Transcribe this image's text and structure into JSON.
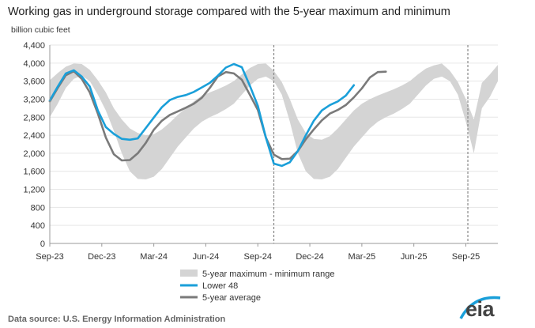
{
  "title": "Working gas in underground  storage compared with the 5-year maximum  and minimum",
  "source": "Data source:  U.S. Energy  Information  Administration",
  "logo_text": "eia",
  "chart_data": {
    "type": "area",
    "ylabel": "billion cubic feet",
    "ylim": [
      0,
      4400
    ],
    "yticks": [
      0,
      400,
      800,
      1200,
      1600,
      2000,
      2400,
      2800,
      3200,
      3600,
      4000,
      4400
    ],
    "xticks": [
      "Sep-23",
      "Dec-23",
      "Mar-24",
      "Jun-24",
      "Sep-24",
      "Dec-24",
      "Mar-25",
      "Jun-25",
      "Sep-25"
    ],
    "grid": true,
    "legend_position": "bottom",
    "week_offsets": [
      0,
      2,
      4,
      6,
      8,
      10,
      12,
      14,
      16,
      18,
      20,
      22,
      24,
      26,
      28,
      30,
      32,
      34,
      36,
      38,
      40,
      42,
      44,
      46,
      48,
      50,
      52,
      54,
      56,
      58,
      60,
      62,
      64,
      66,
      68,
      70,
      72,
      74,
      76,
      78,
      80,
      82,
      84,
      86,
      88,
      90,
      92,
      94,
      96,
      98,
      100,
      102,
      104,
      106,
      108,
      110,
      112
    ],
    "vertical_markers": [
      56,
      104.5
    ],
    "series": [
      {
        "name": "5-year maximum - minimum range",
        "kind": "band",
        "color": "#d4d4d4",
        "max": [
          3620,
          3780,
          3920,
          3990,
          3980,
          3850,
          3620,
          3350,
          3000,
          2750,
          2550,
          2450,
          2400,
          2420,
          2530,
          2680,
          2850,
          3000,
          3150,
          3280,
          3350,
          3420,
          3500,
          3600,
          3750,
          3890,
          3980,
          3990,
          3830,
          3580,
          3200,
          2750,
          2450,
          2320,
          2300,
          2380,
          2550,
          2750,
          2950,
          3100,
          3200,
          3280,
          3350,
          3420,
          3500,
          3600,
          3750,
          3880,
          3950,
          3990,
          3830,
          3580,
          3200,
          2750,
          3560,
          3750,
          3960
        ],
        "min": [
          2800,
          3100,
          3450,
          3650,
          3720,
          3600,
          3300,
          2950,
          2500,
          2000,
          1600,
          1430,
          1420,
          1480,
          1650,
          1900,
          2150,
          2350,
          2550,
          2700,
          2800,
          2880,
          2980,
          3100,
          3300,
          3500,
          3650,
          3700,
          3600,
          3300,
          2700,
          2000,
          1600,
          1430,
          1420,
          1480,
          1650,
          1900,
          2150,
          2350,
          2550,
          2700,
          2800,
          2880,
          2980,
          3100,
          3300,
          3500,
          3650,
          3700,
          3600,
          3300,
          2700,
          2000,
          3000,
          3250,
          3600
        ]
      },
      {
        "name": "Lower 48",
        "kind": "line",
        "color": "#1a9fd9",
        "values": [
          3170,
          3480,
          3770,
          3840,
          3700,
          3480,
          2950,
          2580,
          2430,
          2320,
          2300,
          2330,
          2560,
          2790,
          3020,
          3180,
          3250,
          3290,
          3360,
          3460,
          3560,
          3720,
          3900,
          3980,
          3910,
          3500,
          3050,
          2350,
          1770,
          1720,
          1800,
          2050,
          2400,
          2720,
          2950,
          3070,
          3150,
          3280,
          3510,
          null,
          null,
          null,
          null,
          null,
          null,
          null,
          null,
          null,
          null,
          null,
          null,
          null,
          null,
          null,
          null,
          null,
          null
        ]
      },
      {
        "name": "5-year average",
        "kind": "line",
        "color": "#7a7a7a",
        "values": [
          3150,
          3450,
          3730,
          3820,
          3650,
          3350,
          2880,
          2350,
          1980,
          1840,
          1850,
          2000,
          2230,
          2520,
          2720,
          2850,
          2930,
          3010,
          3100,
          3230,
          3450,
          3700,
          3800,
          3770,
          3630,
          3300,
          2960,
          2350,
          1970,
          1870,
          1880,
          2050,
          2310,
          2530,
          2730,
          2880,
          2960,
          3070,
          3240,
          3440,
          3680,
          3800,
          3810,
          null,
          null,
          null,
          null,
          null,
          null,
          null,
          null,
          null,
          null,
          null,
          null,
          null,
          null
        ]
      }
    ]
  }
}
